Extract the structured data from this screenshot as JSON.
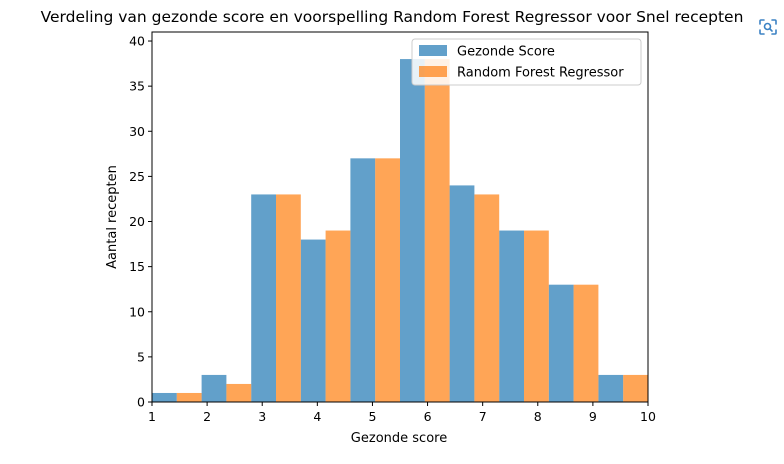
{
  "chart_data": {
    "type": "bar",
    "title": "Verdeling van gezonde score en voorspelling Random Forest Regressor voor Snel recepten",
    "xlabel": "Gezonde score",
    "ylabel": "Aantal recepten",
    "xlim": [
      1,
      10
    ],
    "ylim": [
      0,
      41
    ],
    "x_ticks": [
      1,
      2,
      3,
      4,
      5,
      6,
      7,
      8,
      9,
      10
    ],
    "y_ticks": [
      0,
      5,
      10,
      15,
      20,
      25,
      30,
      35,
      40
    ],
    "bin_edges": [
      1.0,
      1.9,
      2.8,
      3.7,
      4.6,
      5.5,
      6.4,
      7.3,
      8.2,
      9.1,
      10.0
    ],
    "series": [
      {
        "name": "Gezonde Score",
        "values": [
          1,
          3,
          23,
          18,
          27,
          38,
          24,
          19,
          13,
          3
        ],
        "color": "#1f77b4"
      },
      {
        "name": "Random Forest Regressor",
        "values": [
          1,
          2,
          23,
          19,
          27,
          38,
          23,
          19,
          13,
          3
        ],
        "color": "#ff7f0e"
      }
    ],
    "bar_opacity": 0.7,
    "grid": false,
    "legend": "top-right"
  },
  "icons": {
    "corner": "screenshot-scan-icon"
  }
}
